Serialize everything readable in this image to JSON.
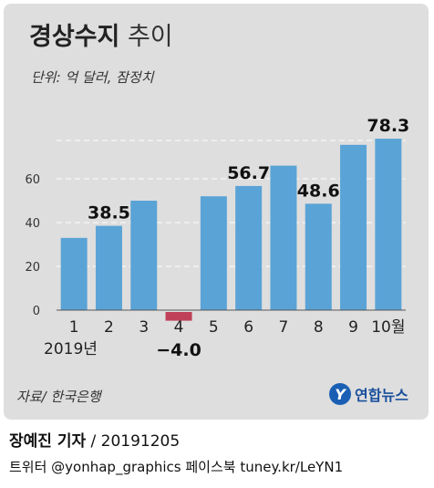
{
  "header": {
    "title_bold": "경상수지",
    "title_normal": "추이",
    "unit": "단위: 억 달러, 잠정치"
  },
  "footer": {
    "source": "자료/ 한국은행",
    "logo_text": "연합뉴스",
    "reporter": "장예진 기자",
    "date": " / 20191205",
    "sns": "트위터 @yonhap_graphics  페이스북 tuney.kr/LeYN1"
  },
  "colors": {
    "bar": "#5aa3d6",
    "negative_bar": "#c0405a",
    "panel": "#dedede"
  },
  "chart_data": {
    "type": "bar",
    "categories": [
      "1",
      "2",
      "3",
      "4",
      "5",
      "6",
      "7",
      "8",
      "9",
      "10월"
    ],
    "values": [
      33,
      38.5,
      50,
      -4.0,
      52,
      56.7,
      66,
      48.6,
      75.5,
      78.3
    ],
    "data_labels": [
      "",
      "38.5",
      "",
      "−4.0",
      "",
      "56.7",
      "",
      "48.6",
      "",
      "78.3"
    ],
    "category_note": "2019년",
    "yticks": [
      0,
      20,
      40,
      60
    ],
    "ylim": [
      -4,
      80
    ],
    "grid": true
  }
}
